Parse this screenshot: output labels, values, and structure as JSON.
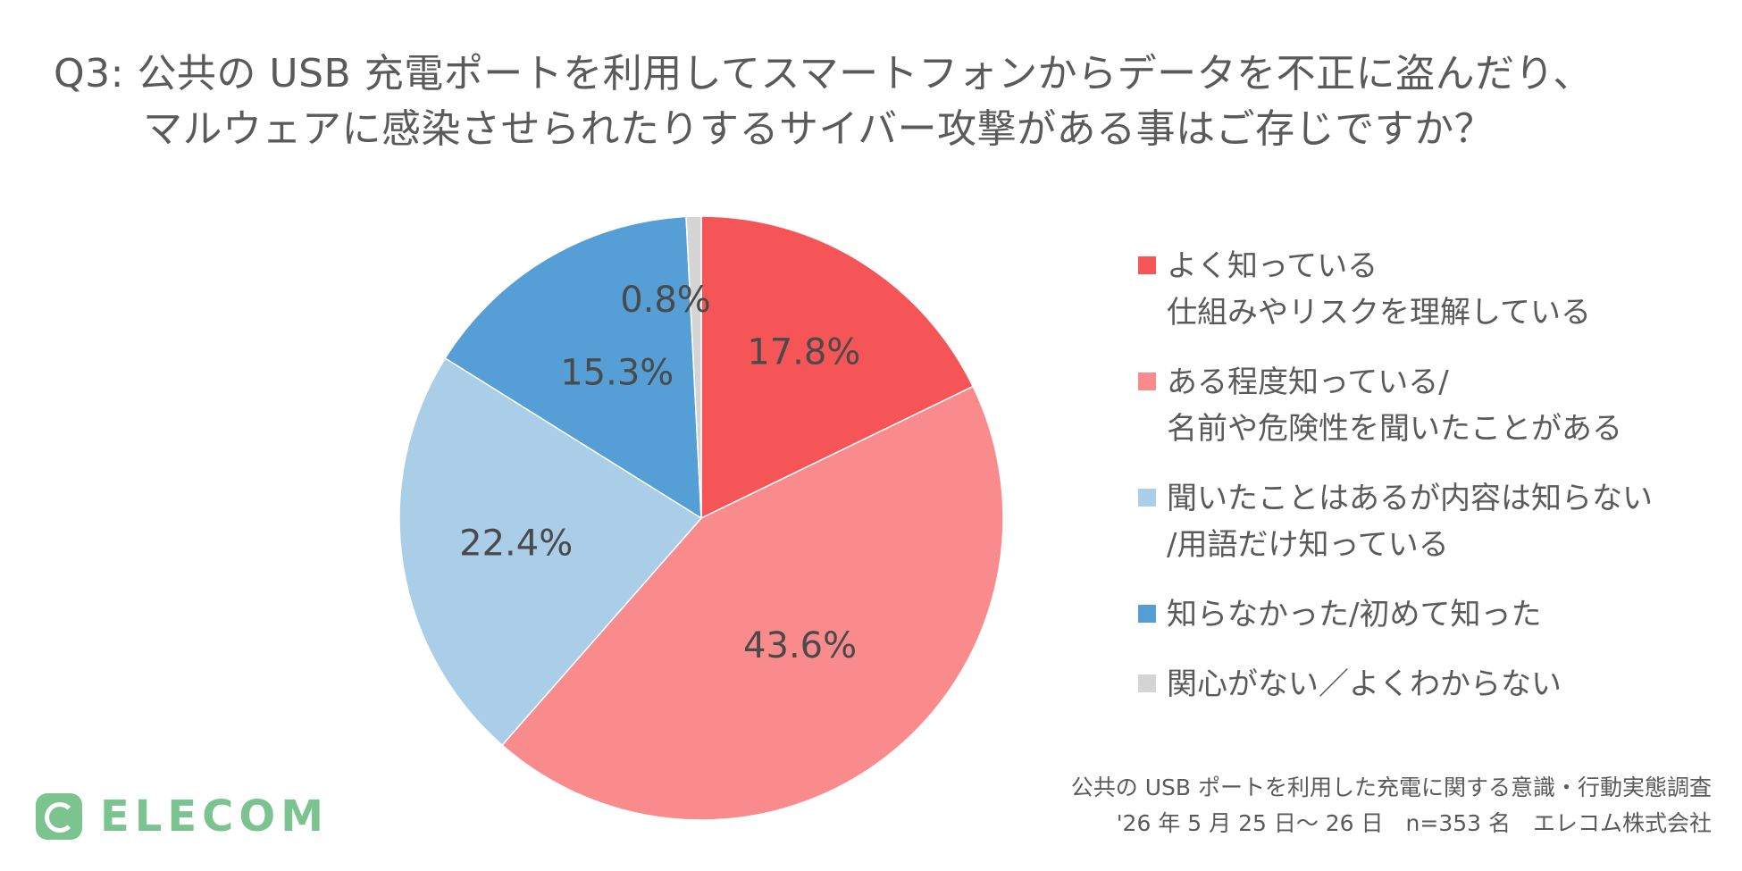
{
  "title": {
    "line1": "Q3: 公共の USB 充電ポートを利用してスマートフォンからデータを不正に盗んだり、",
    "line2": "マルウェアに感染させられたりするサイバー攻撃がある事はご存じですか？"
  },
  "chart_data": {
    "type": "pie",
    "start": "12 o'clock",
    "direction": "clockwise",
    "legend_position": "right",
    "slices": [
      {
        "label": [
          "よく知っている",
          "仕組みやリスクを理解している"
        ],
        "value": 17.8,
        "data_label": "17.8%",
        "color": "#f55557"
      },
      {
        "label": [
          "ある程度知っている/",
          "名前や危険性を聞いたことがある"
        ],
        "value": 43.6,
        "data_label": "43.6%",
        "color": "#f98b8c"
      },
      {
        "label": [
          "聞いたことはあるが内容は知らない",
          "/用語だけ知っている"
        ],
        "value": 22.4,
        "data_label": "22.4%",
        "color": "#aacde8"
      },
      {
        "label": [
          "知らなかった/初めて知った"
        ],
        "value": 15.3,
        "data_label": "15.3%",
        "color": "#559fd6"
      },
      {
        "label": [
          "関心がない／よくわからない"
        ],
        "value": 0.8,
        "data_label": "0.8%",
        "color": "#d4d4d4"
      }
    ]
  },
  "footer": {
    "line1": "公共の USB ポートを利用した充電に関する意識・行動実態調査",
    "line2": "'26 年 5 月 25 日～ 26 日　n=353 名　エレコム株式会社"
  },
  "logo": {
    "text": "ELECOM",
    "color": "#7cc48f"
  }
}
